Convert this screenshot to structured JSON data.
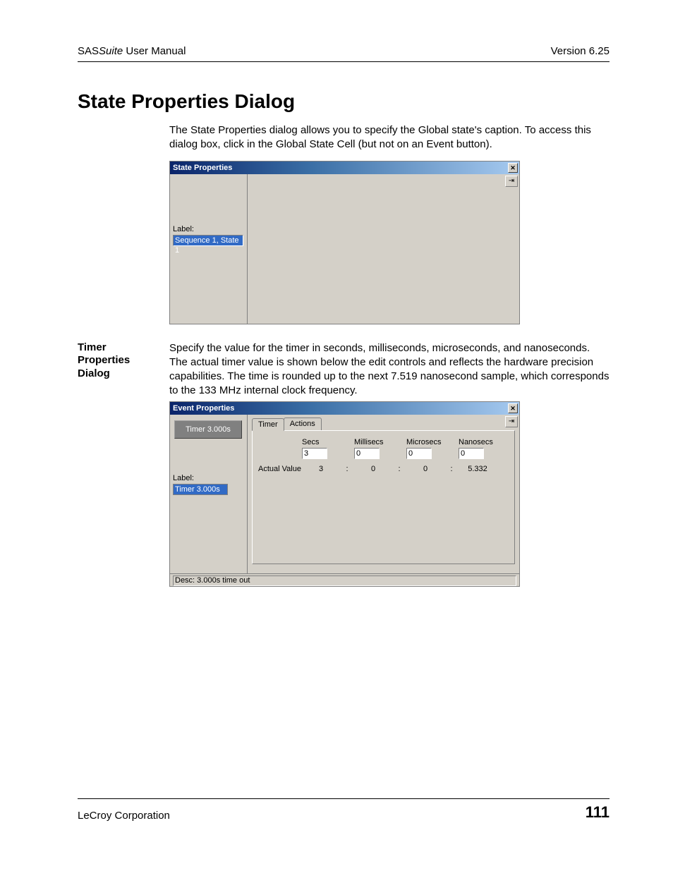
{
  "header": {
    "product_prefix": "SAS",
    "product_suffix": "Suite",
    "doc_type": " User Manual",
    "version": "Version 6.25"
  },
  "title": "State Properties Dialog",
  "intro": "The State Properties dialog allows you to specify the Global state's caption. To access this dialog box, click in the Global State Cell (but not on an Event button).",
  "dialog1": {
    "title": "State Properties",
    "close_glyph": "✕",
    "pin_glyph": "⇥",
    "label_caption": "Label:",
    "label_value": "Sequence 1, State 1"
  },
  "section2": {
    "heading": "Timer Properties Dialog",
    "para": "Specify the value for the timer in seconds, milliseconds, microseconds, and nanoseconds.  The actual timer value is shown below the edit controls and reflects the hardware precision capabilities.  The time is rounded up to the next 7.519 nanosecond sample, which corresponds to the 133 MHz internal clock frequency."
  },
  "dialog2": {
    "title": "Event Properties",
    "close_glyph": "✕",
    "pin_glyph": "⇥",
    "timer_button": "Timer 3.000s",
    "label_caption": "Label:",
    "label_value": "Timer 3.000s",
    "tabs": {
      "timer": "Timer",
      "actions": "Actions"
    },
    "cols": {
      "secs": "Secs",
      "millisecs": "Millisecs",
      "microsecs": "Microsecs",
      "nanosecs": "Nanosecs"
    },
    "vals": {
      "secs": "3",
      "millisecs": "0",
      "microsecs": "0",
      "nanosecs": "0"
    },
    "actual_label": "Actual Value",
    "actual": {
      "secs": "3",
      "millisecs": "0",
      "microsecs": "0",
      "nanosecs": "5.332"
    },
    "colon": ":",
    "desc": "Desc: 3.000s time out"
  },
  "footer": {
    "company": "LeCroy Corporation",
    "page": "111"
  }
}
